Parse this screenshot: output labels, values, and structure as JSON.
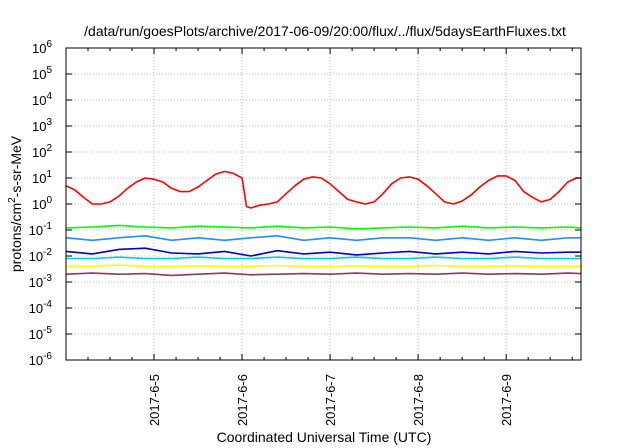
{
  "chart_data": {
    "type": "line",
    "title": "/data/run/goesPlots/archive/2017-06-09/20:00/flux/../flux/5daysEarthFluxes.txt",
    "xlabel": "Coordinated Universal Time (UTC)",
    "ylabel": "protons/cm2-s-sr-MeV",
    "yscale": "log",
    "ylim": [
      1e-06,
      1000000.0
    ],
    "xlim": [
      0,
      5.85
    ],
    "grid": true,
    "legend": "none",
    "x_ticks": [
      {
        "x": 1.0,
        "label": "2017-6-5"
      },
      {
        "x": 2.0,
        "label": "2017-6-6"
      },
      {
        "x": 3.0,
        "label": "2017-6-7"
      },
      {
        "x": 4.0,
        "label": "2017-6-8"
      },
      {
        "x": 5.0,
        "label": "2017-6-9"
      }
    ],
    "y_ticks": [
      {
        "exp": 6,
        "label": "10",
        "sup": "6"
      },
      {
        "exp": 5,
        "label": "10",
        "sup": "5"
      },
      {
        "exp": 4,
        "label": "10",
        "sup": "4"
      },
      {
        "exp": 3,
        "label": "10",
        "sup": "3"
      },
      {
        "exp": 2,
        "label": "10",
        "sup": "2"
      },
      {
        "exp": 1,
        "label": "10",
        "sup": "1"
      },
      {
        "exp": 0,
        "label": "10",
        "sup": "0"
      },
      {
        "exp": -1,
        "label": "10",
        "sup": "-1"
      },
      {
        "exp": -2,
        "label": "10",
        "sup": "-2"
      },
      {
        "exp": -3,
        "label": "10",
        "sup": "-3"
      },
      {
        "exp": -4,
        "label": "10",
        "sup": "-4"
      },
      {
        "exp": -5,
        "label": "10",
        "sup": "-5"
      },
      {
        "exp": -6,
        "label": "10",
        "sup": "-6"
      }
    ],
    "series": [
      {
        "color": "#ff0000",
        "x": [
          0.0,
          0.1,
          0.2,
          0.3,
          0.4,
          0.5,
          0.6,
          0.7,
          0.8,
          0.9,
          1.0,
          1.1,
          1.2,
          1.3,
          1.4,
          1.5,
          1.6,
          1.7,
          1.8,
          1.9,
          2.0,
          2.05,
          2.1,
          2.2,
          2.3,
          2.4,
          2.5,
          2.6,
          2.7,
          2.8,
          2.9,
          3.0,
          3.1,
          3.2,
          3.3,
          3.4,
          3.5,
          3.6,
          3.7,
          3.8,
          3.9,
          4.0,
          4.1,
          4.2,
          4.3,
          4.4,
          4.5,
          4.6,
          4.7,
          4.8,
          4.9,
          5.0,
          5.1,
          5.2,
          5.3,
          5.4,
          5.5,
          5.6,
          5.7,
          5.8,
          5.85
        ],
        "y": [
          5,
          3.5,
          1.8,
          1.0,
          1.0,
          1.2,
          2.0,
          4.0,
          7,
          10,
          9,
          7,
          4,
          3,
          3,
          4.5,
          8,
          14,
          18,
          15,
          10,
          0.8,
          0.7,
          0.9,
          1.0,
          1.2,
          2.5,
          5,
          9,
          11,
          10,
          6,
          3,
          1.5,
          1.2,
          1.0,
          1.2,
          2.5,
          6,
          10,
          11,
          9,
          5,
          2.5,
          1.2,
          1.0,
          1.3,
          2.2,
          4.5,
          8,
          12,
          12,
          8,
          3,
          1.8,
          1.2,
          1.5,
          3,
          7,
          10,
          10
        ]
      },
      {
        "color": "#00ff00",
        "x": [
          0.0,
          0.3,
          0.6,
          0.9,
          1.2,
          1.5,
          1.8,
          2.1,
          2.4,
          2.7,
          3.0,
          3.3,
          3.6,
          3.9,
          4.2,
          4.5,
          4.8,
          5.1,
          5.4,
          5.7,
          5.85
        ],
        "y": [
          0.12,
          0.13,
          0.15,
          0.13,
          0.12,
          0.14,
          0.13,
          0.12,
          0.14,
          0.12,
          0.13,
          0.11,
          0.12,
          0.13,
          0.12,
          0.14,
          0.12,
          0.13,
          0.12,
          0.13,
          0.12
        ]
      },
      {
        "color": "#1e90ff",
        "x": [
          0.0,
          0.3,
          0.6,
          0.9,
          1.2,
          1.5,
          1.8,
          2.1,
          2.4,
          2.7,
          3.0,
          3.3,
          3.6,
          3.9,
          4.2,
          4.5,
          4.8,
          5.1,
          5.4,
          5.7,
          5.85
        ],
        "y": [
          0.05,
          0.04,
          0.05,
          0.06,
          0.04,
          0.05,
          0.04,
          0.05,
          0.06,
          0.04,
          0.05,
          0.04,
          0.05,
          0.05,
          0.04,
          0.05,
          0.04,
          0.05,
          0.04,
          0.05,
          0.05
        ]
      },
      {
        "color": "#0000cd",
        "x": [
          0.0,
          0.3,
          0.6,
          0.9,
          1.2,
          1.5,
          1.8,
          2.1,
          2.4,
          2.7,
          3.0,
          3.3,
          3.6,
          3.9,
          4.2,
          4.5,
          4.8,
          5.1,
          5.4,
          5.7,
          5.85
        ],
        "y": [
          0.015,
          0.012,
          0.018,
          0.02,
          0.013,
          0.012,
          0.015,
          0.01,
          0.016,
          0.012,
          0.014,
          0.011,
          0.013,
          0.015,
          0.012,
          0.014,
          0.012,
          0.015,
          0.013,
          0.014,
          0.014
        ]
      },
      {
        "color": "#00d0d0",
        "x": [
          0.0,
          0.3,
          0.6,
          0.9,
          1.2,
          1.5,
          1.8,
          2.1,
          2.4,
          2.7,
          3.0,
          3.3,
          3.6,
          3.9,
          4.2,
          4.5,
          4.8,
          5.1,
          5.4,
          5.7,
          5.85
        ],
        "y": [
          0.008,
          0.008,
          0.009,
          0.008,
          0.008,
          0.009,
          0.008,
          0.008,
          0.009,
          0.008,
          0.008,
          0.009,
          0.008,
          0.008,
          0.009,
          0.008,
          0.008,
          0.009,
          0.008,
          0.008,
          0.008
        ]
      },
      {
        "color": "#ffff00",
        "x": [
          0.0,
          0.3,
          0.6,
          0.9,
          1.2,
          1.5,
          1.8,
          2.1,
          2.4,
          2.7,
          3.0,
          3.3,
          3.6,
          3.9,
          4.2,
          4.5,
          4.8,
          5.1,
          5.4,
          5.7,
          5.85
        ],
        "y": [
          0.004,
          0.004,
          0.0045,
          0.004,
          0.004,
          0.0042,
          0.004,
          0.004,
          0.0043,
          0.004,
          0.004,
          0.0042,
          0.004,
          0.004,
          0.0043,
          0.004,
          0.004,
          0.0042,
          0.004,
          0.004,
          0.004
        ]
      },
      {
        "color": "#8b3a62",
        "x": [
          0.0,
          0.3,
          0.6,
          0.9,
          1.2,
          1.5,
          1.8,
          2.1,
          2.4,
          2.7,
          3.0,
          3.3,
          3.6,
          3.9,
          4.2,
          4.5,
          4.8,
          5.1,
          5.4,
          5.7,
          5.85
        ],
        "y": [
          0.002,
          0.0022,
          0.002,
          0.0021,
          0.0018,
          0.002,
          0.0022,
          0.0019,
          0.002,
          0.0021,
          0.002,
          0.0022,
          0.002,
          0.0021,
          0.002,
          0.0022,
          0.002,
          0.0021,
          0.002,
          0.0022,
          0.0021
        ]
      }
    ]
  }
}
